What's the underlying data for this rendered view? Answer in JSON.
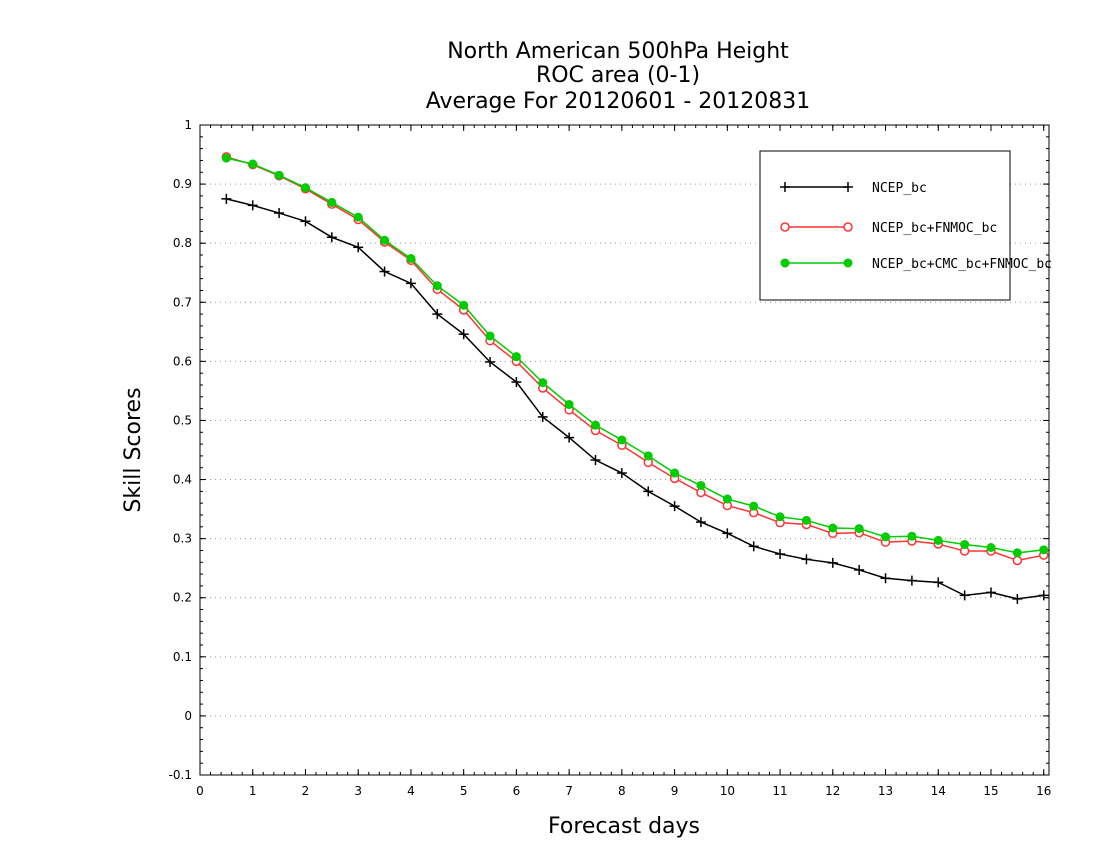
{
  "chart_data": {
    "type": "line",
    "title_lines": [
      "North American 500hPa Height",
      "ROC area (0-1)",
      "Average For 20120601 - 20120831"
    ],
    "xlabel": "Forecast days",
    "ylabel": "Skill Scores",
    "xlim": [
      0,
      16.1
    ],
    "ylim": [
      -0.1,
      1
    ],
    "xticks": [
      "0",
      "1",
      "2",
      "3",
      "4",
      "5",
      "6",
      "7",
      "8",
      "9",
      "10",
      "11",
      "12",
      "13",
      "14",
      "15",
      "16"
    ],
    "yticks": [
      "-0.1",
      "0",
      "0.1",
      "0.2",
      "0.3",
      "0.4",
      "0.5",
      "0.6",
      "0.7",
      "0.8",
      "0.9",
      "1"
    ],
    "grid": "horizontal dotted",
    "legend_position": "top-right",
    "x": [
      0.5,
      1,
      1.5,
      2,
      2.5,
      3,
      3.5,
      4,
      4.5,
      5,
      5.5,
      6,
      6.5,
      7,
      7.5,
      8,
      8.5,
      9,
      9.5,
      10,
      10.5,
      11,
      11.5,
      12,
      12.5,
      13,
      13.5,
      14,
      14.5,
      15,
      15.5,
      16
    ],
    "series": [
      {
        "name": "NCEP_bc",
        "color": "#000000",
        "marker": "plus",
        "values": [
          0.875,
          0.864,
          0.851,
          0.837,
          0.81,
          0.793,
          0.752,
          0.732,
          0.68,
          0.646,
          0.599,
          0.565,
          0.506,
          0.471,
          0.433,
          0.411,
          0.38,
          0.355,
          0.328,
          0.309,
          0.287,
          0.274,
          0.265,
          0.259,
          0.247,
          0.233,
          0.229,
          0.226,
          0.204,
          0.209,
          0.198,
          0.204
        ]
      },
      {
        "name": "NCEP_bc+FNMOC_bc",
        "color": "#ff3333",
        "marker": "open-circle",
        "values": [
          0.946,
          0.933,
          0.914,
          0.892,
          0.866,
          0.84,
          0.802,
          0.771,
          0.722,
          0.687,
          0.635,
          0.6,
          0.555,
          0.518,
          0.483,
          0.458,
          0.429,
          0.402,
          0.378,
          0.356,
          0.344,
          0.327,
          0.324,
          0.309,
          0.31,
          0.294,
          0.296,
          0.291,
          0.279,
          0.279,
          0.263,
          0.272
        ]
      },
      {
        "name": "NCEP_bc+CMC_bc+FNMOC_bc",
        "color": "#00cc00",
        "marker": "filled-circle",
        "values": [
          0.944,
          0.934,
          0.915,
          0.894,
          0.869,
          0.844,
          0.805,
          0.774,
          0.728,
          0.695,
          0.643,
          0.608,
          0.564,
          0.527,
          0.492,
          0.467,
          0.44,
          0.411,
          0.39,
          0.367,
          0.355,
          0.337,
          0.331,
          0.318,
          0.317,
          0.303,
          0.304,
          0.297,
          0.29,
          0.285,
          0.276,
          0.281
        ]
      }
    ]
  }
}
